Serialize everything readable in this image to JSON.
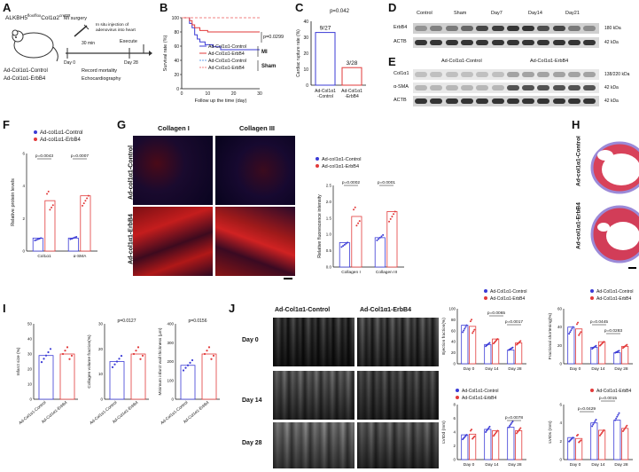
{
  "panels": {
    "A": {
      "label": "A",
      "mouse_strain": "ALKBH5",
      "strain_sup1": "flox/flox",
      "strain_mid": "Col1α2",
      "strain_sup2": "creER",
      "surgery": "MI surgery",
      "wait": "30 min",
      "injection": "In situ injection of adenovirus into heart",
      "execute": "Execute",
      "day0": "Day 0",
      "day28": "Day 28",
      "record": "Record mortality",
      "echo": "Echocardiography",
      "group1": "Ad-Col1α1-Control",
      "group2": "Ad-Col1α1-ErbB4"
    },
    "B": {
      "label": "B",
      "ylabel": "Survival rate (%)",
      "xlabel": "Follow up the time (day)",
      "pval": "p=0.0299",
      "legend": [
        "Ad-Col1α1-Control",
        "Ad-Col1α1-ErbB4",
        "Ad-Col1α1-Control",
        "Ad-Col1α1-ErbB4"
      ],
      "mi": "MI",
      "sham": "Sham",
      "yticks": [
        "0",
        "20",
        "40",
        "60",
        "80",
        "100"
      ],
      "xticks": [
        "0",
        "10",
        "20",
        "30"
      ]
    },
    "C": {
      "label": "C",
      "ylabel": "Cardiac rupture rate (%)",
      "pval": "p=0.042",
      "bar1_text": "9/27",
      "bar2_text": "3/28",
      "cat1": "Ad-Col1α1\n-Control",
      "cat1a": "Ad-Col1α1",
      "cat1b": "-Control",
      "cat2a": "Ad-Col1α1",
      "cat2b": "-ErbB4",
      "yticks": [
        "0",
        "10",
        "20",
        "30",
        "40"
      ]
    },
    "D": {
      "label": "D",
      "lanes": [
        "Control",
        "Sham",
        "Day7",
        "Day14",
        "Day21"
      ],
      "rows": [
        "ErbB4",
        "ACTB"
      ],
      "sizes": [
        "180 kDa",
        "42 kDa"
      ]
    },
    "E": {
      "label": "E",
      "groups": [
        "Ad-Col1α1-Control",
        "Ad-Col1α1-ErbB4"
      ],
      "rows": [
        "Col1α1",
        "α-SMA",
        "ACTB"
      ],
      "sizes": [
        "138/220 kDa",
        "42 kDa",
        "42 kDa"
      ]
    },
    "F": {
      "label": "F",
      "legend": [
        "Ad-col1α1-Control",
        "Ad-col1α1-ErbB4"
      ],
      "ylabel": "Relative protein levels",
      "p1": "p=0.0043",
      "p2": "p=0.0007",
      "cats": [
        "Col1α1",
        "α-SMA"
      ],
      "yticks": [
        "0",
        "2",
        "4",
        "6"
      ]
    },
    "G": {
      "label": "G",
      "col1": "Collagen I",
      "col2": "Collagen III",
      "row1": "Ad-col1α1-Control",
      "row2": "Ad-col1α1-ErbB4",
      "legend": [
        "Ad-col1α1-Control",
        "Ad-col1α1-ErbB4"
      ],
      "ylabel": "Relative fluorescence intensity",
      "p1": "p=0.0002",
      "p2": "p=0.0001",
      "cats": [
        "Collagen I",
        "Collagen III"
      ],
      "yticks": [
        "0.0",
        "0.5",
        "1.0",
        "1.5",
        "2.0",
        "2.5"
      ]
    },
    "H": {
      "label": "H",
      "row1": "Ad-col1α1-Control",
      "row2": "Ad-col1α1-ErbB4"
    },
    "I": {
      "label": "I",
      "ylabel1": "Infarct size (%)",
      "ylabel2": "Collagen volume fraction(%)",
      "ylabel3": "Minimum infarct wall thickness (μm)",
      "p2": "p=0.0127",
      "p3": "p=0.0156",
      "cat1": "Ad-Col1α1-Control",
      "cat2": "Ad-Col1α1-ErbB4"
    },
    "J": {
      "label": "J",
      "col1": "Ad-Col1α1-Control",
      "col2": "Ad-Col1α1-ErbB4",
      "rows": [
        "Day 0",
        "Day 14",
        "Day 28"
      ],
      "legend": [
        "Ad-Col1α1-Control",
        "Ad-Col1α1-ErbB4"
      ],
      "ef_ylabel": "Ejection fraction(%)",
      "fs_ylabel": "Fractional shortening(%)",
      "lvidd_ylabel": "LVIDd (mm)",
      "lvids_ylabel": "LVIDs (mm)",
      "ef_p1": "p=0.0065",
      "ef_p2": "p=0.0017",
      "fs_p1": "p=0.0445",
      "fs_p2": "p=0.0283",
      "lvidd_p": "p=0.0078",
      "lvids_p1": "p=0.0429",
      "lvids_p2": "p=0.0015",
      "days": [
        "Day 0",
        "Day 14",
        "Day 28"
      ]
    }
  },
  "colors": {
    "blue": "#3b3bd6",
    "red": "#e23a3a",
    "blue_dash": "#6aa0e8",
    "red_dash": "#f08080"
  },
  "chart_data": [
    {
      "type": "line",
      "title": "",
      "xlabel": "Follow up the time (day)",
      "ylabel": "Survival rate (%)",
      "xlim": [
        0,
        30
      ],
      "ylim": [
        0,
        100
      ],
      "series": [
        {
          "name": "Ad-Col1α1-Control",
          "x": [
            0,
            3,
            4,
            5,
            6,
            7,
            9,
            12,
            15,
            30
          ],
          "y": [
            100,
            92,
            86,
            76,
            70,
            66,
            62,
            59,
            55,
            55
          ]
        },
        {
          "name": "Ad-Col1α1-ErbB4",
          "x": [
            0,
            3,
            4,
            5,
            7,
            10,
            30
          ],
          "y": [
            100,
            96,
            90,
            86,
            82,
            80,
            80
          ]
        },
        {
          "name": "Ad-Col1α1-Control",
          "x": [
            0,
            30
          ],
          "y": [
            100,
            100
          ]
        },
        {
          "name": "Ad-Col1α1-ErbB4",
          "x": [
            0,
            30
          ],
          "y": [
            100,
            100
          ]
        }
      ]
    },
    {
      "type": "bar",
      "title": "",
      "ylabel": "Cardiac rupture rate (%)",
      "categories": [
        "Ad-Col1α1-Control",
        "Ad-Col1α1-ErbB4"
      ],
      "values": [
        33,
        11
      ],
      "ylim": [
        0,
        40
      ]
    },
    {
      "type": "bar",
      "ylabel": "Relative protein levels",
      "categories": [
        "Col1α1",
        "α-SMA"
      ],
      "series": [
        {
          "name": "Ad-col1α1-Control",
          "values": [
            0.8,
            0.8
          ]
        },
        {
          "name": "Ad-col1α1-ErbB4",
          "values": [
            3.1,
            3.4
          ]
        }
      ],
      "ylim": [
        0,
        6
      ]
    },
    {
      "type": "bar",
      "ylabel": "Relative fluorescence intensity",
      "categories": [
        "Collagen I",
        "Collagen III"
      ],
      "series": [
        {
          "name": "Ad-col1α1-Control",
          "values": [
            0.75,
            0.9
          ]
        },
        {
          "name": "Ad-col1α1-ErbB4",
          "values": [
            1.55,
            1.7
          ]
        }
      ],
      "ylim": [
        0,
        2.5
      ]
    },
    {
      "type": "bar",
      "ylabel": "Infarct size (%)",
      "categories": [
        "Ad-Col1α1-Control",
        "Ad-Col1α1-ErbB4"
      ],
      "values": [
        29,
        30
      ],
      "ylim": [
        0,
        50
      ]
    },
    {
      "type": "bar",
      "ylabel": "Collagen volume fraction(%)",
      "categories": [
        "Ad-Col1α1-Control",
        "Ad-Col1α1-ErbB4"
      ],
      "values": [
        15,
        18
      ],
      "ylim": [
        0,
        30
      ]
    },
    {
      "type": "bar",
      "ylabel": "Minimum infarct wall thickness (μm)",
      "categories": [
        "Ad-Col1α1-Control",
        "Ad-Col1α1-ErbB4"
      ],
      "values": [
        180,
        240
      ],
      "ylim": [
        0,
        400
      ]
    },
    {
      "type": "bar",
      "ylabel": "Ejection fraction(%)",
      "categories": [
        "Day 0",
        "Day 14",
        "Day 28"
      ],
      "series": [
        {
          "name": "Ad-Col1α1-Control",
          "values": [
            70,
            35,
            25
          ]
        },
        {
          "name": "Ad-Col1α1-ErbB4",
          "values": [
            68,
            45,
            38
          ]
        }
      ],
      "ylim": [
        0,
        100
      ]
    },
    {
      "type": "bar",
      "ylabel": "Fractional shortening(%)",
      "categories": [
        "Day 0",
        "Day 14",
        "Day 28"
      ],
      "series": [
        {
          "name": "Ad-Col1α1-Control",
          "values": [
            40,
            18,
            12
          ]
        },
        {
          "name": "Ad-Col1α1-ErbB4",
          "values": [
            38,
            24,
            19
          ]
        }
      ],
      "ylim": [
        0,
        60
      ]
    },
    {
      "type": "bar",
      "ylabel": "LVIDd (mm)",
      "categories": [
        "Day 0",
        "Day 14",
        "Day 28"
      ],
      "series": [
        {
          "name": "Ad-Col1α1-Control",
          "values": [
            3.6,
            4.4,
            4.7
          ]
        },
        {
          "name": "Ad-Col1α1-ErbB4",
          "values": [
            3.7,
            4.2,
            4.2
          ]
        }
      ],
      "ylim": [
        0,
        8
      ]
    },
    {
      "type": "bar",
      "ylabel": "LVIDs (mm)",
      "categories": [
        "Day 0",
        "Day 14",
        "Day 28"
      ],
      "series": [
        {
          "name": "Ad-Col1α1-Control",
          "values": [
            2.4,
            4.0,
            4.3
          ]
        },
        {
          "name": "Ad-Col1α1-ErbB4",
          "values": [
            2.3,
            3.2,
            3.4
          ]
        }
      ],
      "ylim": [
        0,
        6
      ]
    }
  ]
}
